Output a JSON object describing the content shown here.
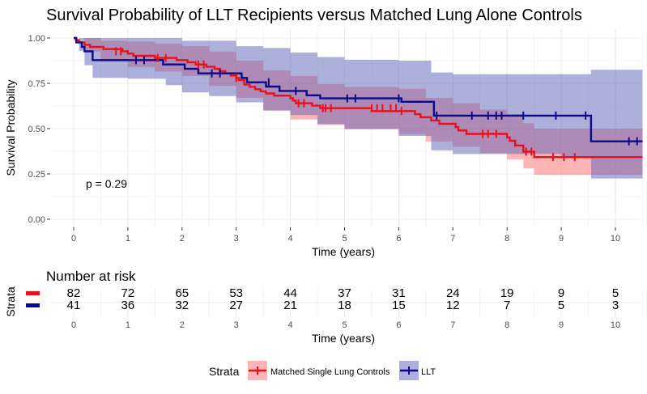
{
  "colors": {
    "controls": "#e8101b",
    "llt": "#0a0a8a",
    "controls_band": "#ff6b6b",
    "llt_band": "#5c62b8",
    "grid": "#ebebeb",
    "text": "#000000",
    "tick_text": "#4d4d4d"
  },
  "chart_data": {
    "type": "line",
    "title": "Survival Probability of LLT Recipients versus Matched Lung Alone Controls",
    "xlabel": "Time (years)",
    "ylabel": "Survival Probability",
    "xlim": [
      0,
      10.5
    ],
    "ylim": [
      0,
      1
    ],
    "x_ticks": [
      "0",
      "1",
      "2",
      "3",
      "4",
      "5",
      "6",
      "7",
      "8",
      "9",
      "10"
    ],
    "y_ticks": [
      "0.00",
      "0.25",
      "0.50",
      "0.75",
      "1.00"
    ],
    "y_tick_values": [
      0,
      0.25,
      0.5,
      0.75,
      1.0
    ],
    "annotation": "p = 0.29",
    "legend_title": "Strata",
    "legend_position": "bottom",
    "series": [
      {
        "name": "Matched Single Lung Controls",
        "key": "controls",
        "steps": [
          [
            0,
            1.0
          ],
          [
            0.04,
            0.988
          ],
          [
            0.1,
            0.976
          ],
          [
            0.2,
            0.963
          ],
          [
            0.3,
            0.951
          ],
          [
            0.55,
            0.939
          ],
          [
            0.9,
            0.927
          ],
          [
            1.0,
            0.914
          ],
          [
            1.1,
            0.902
          ],
          [
            1.5,
            0.89
          ],
          [
            1.9,
            0.878
          ],
          [
            2.1,
            0.866
          ],
          [
            2.25,
            0.854
          ],
          [
            2.45,
            0.842
          ],
          [
            2.6,
            0.83
          ],
          [
            2.7,
            0.817
          ],
          [
            2.8,
            0.805
          ],
          [
            2.9,
            0.793
          ],
          [
            3.0,
            0.78
          ],
          [
            3.05,
            0.768
          ],
          [
            3.15,
            0.743
          ],
          [
            3.25,
            0.731
          ],
          [
            3.35,
            0.718
          ],
          [
            3.45,
            0.706
          ],
          [
            3.55,
            0.694
          ],
          [
            3.7,
            0.682
          ],
          [
            4.0,
            0.668
          ],
          [
            4.05,
            0.655
          ],
          [
            4.1,
            0.64
          ],
          [
            4.4,
            0.627
          ],
          [
            4.55,
            0.613
          ],
          [
            5.5,
            0.597
          ],
          [
            6.3,
            0.58
          ],
          [
            6.4,
            0.563
          ],
          [
            6.6,
            0.545
          ],
          [
            6.75,
            0.527
          ],
          [
            7.05,
            0.509
          ],
          [
            7.1,
            0.49
          ],
          [
            7.25,
            0.471
          ],
          [
            8.0,
            0.452
          ],
          [
            8.05,
            0.433
          ],
          [
            8.15,
            0.407
          ],
          [
            8.3,
            0.373
          ],
          [
            8.5,
            0.343
          ],
          [
            10.5,
            0.343
          ]
        ],
        "censors": [
          [
            0.78,
            0.927
          ],
          [
            0.87,
            0.927
          ],
          [
            1.55,
            0.89
          ],
          [
            1.7,
            0.89
          ],
          [
            2.3,
            0.854
          ],
          [
            2.4,
            0.854
          ],
          [
            3.0,
            0.78
          ],
          [
            4.15,
            0.64
          ],
          [
            4.25,
            0.64
          ],
          [
            4.6,
            0.613
          ],
          [
            4.65,
            0.613
          ],
          [
            4.75,
            0.613
          ],
          [
            5.5,
            0.613
          ],
          [
            5.6,
            0.613
          ],
          [
            5.7,
            0.613
          ],
          [
            5.85,
            0.613
          ],
          [
            5.95,
            0.613
          ],
          [
            6.05,
            0.597
          ],
          [
            7.55,
            0.471
          ],
          [
            7.65,
            0.471
          ],
          [
            7.8,
            0.471
          ],
          [
            8.35,
            0.373
          ],
          [
            8.45,
            0.373
          ],
          [
            8.85,
            0.343
          ],
          [
            9.05,
            0.343
          ],
          [
            9.25,
            0.343
          ]
        ],
        "band_upper": [
          [
            0,
            1.0
          ],
          [
            0.2,
            1.0
          ],
          [
            0.5,
            0.985
          ],
          [
            1.0,
            0.98
          ],
          [
            1.5,
            0.97
          ],
          [
            2.0,
            0.955
          ],
          [
            2.5,
            0.925
          ],
          [
            3.0,
            0.875
          ],
          [
            3.5,
            0.82
          ],
          [
            4.0,
            0.79
          ],
          [
            4.5,
            0.745
          ],
          [
            5.0,
            0.73
          ],
          [
            6.0,
            0.72
          ],
          [
            6.5,
            0.67
          ],
          [
            7.0,
            0.64
          ],
          [
            7.5,
            0.605
          ],
          [
            8.0,
            0.58
          ],
          [
            8.3,
            0.53
          ],
          [
            8.5,
            0.5
          ],
          [
            9.0,
            0.5
          ],
          [
            10.5,
            0.5
          ]
        ],
        "band_lower": [
          [
            0,
            1.0
          ],
          [
            0.2,
            0.925
          ],
          [
            0.5,
            0.87
          ],
          [
            1.0,
            0.84
          ],
          [
            1.5,
            0.815
          ],
          [
            2.0,
            0.79
          ],
          [
            2.5,
            0.735
          ],
          [
            3.0,
            0.67
          ],
          [
            3.5,
            0.6
          ],
          [
            4.0,
            0.55
          ],
          [
            4.5,
            0.52
          ],
          [
            5.0,
            0.495
          ],
          [
            6.0,
            0.47
          ],
          [
            6.5,
            0.43
          ],
          [
            7.0,
            0.4
          ],
          [
            7.5,
            0.365
          ],
          [
            8.0,
            0.33
          ],
          [
            8.3,
            0.28
          ],
          [
            8.5,
            0.245
          ],
          [
            9.0,
            0.245
          ],
          [
            10.5,
            0.245
          ]
        ]
      },
      {
        "name": "LLT",
        "key": "llt",
        "steps": [
          [
            0,
            1.0
          ],
          [
            0.05,
            0.976
          ],
          [
            0.15,
            0.951
          ],
          [
            0.2,
            0.927
          ],
          [
            0.35,
            0.878
          ],
          [
            1.65,
            0.854
          ],
          [
            2.05,
            0.83
          ],
          [
            2.3,
            0.805
          ],
          [
            3.1,
            0.78
          ],
          [
            3.2,
            0.756
          ],
          [
            3.55,
            0.732
          ],
          [
            3.8,
            0.708
          ],
          [
            4.3,
            0.684
          ],
          [
            4.55,
            0.667
          ],
          [
            6.05,
            0.648
          ],
          [
            6.65,
            0.572
          ],
          [
            9.55,
            0.43
          ],
          [
            10.5,
            0.43
          ]
        ],
        "censors": [
          [
            1.15,
            0.878
          ],
          [
            1.3,
            0.878
          ],
          [
            2.55,
            0.805
          ],
          [
            2.7,
            0.805
          ],
          [
            3.6,
            0.756
          ],
          [
            4.1,
            0.708
          ],
          [
            5.05,
            0.667
          ],
          [
            5.2,
            0.667
          ],
          [
            6.0,
            0.667
          ],
          [
            6.7,
            0.572
          ],
          [
            7.35,
            0.572
          ],
          [
            7.65,
            0.572
          ],
          [
            7.8,
            0.572
          ],
          [
            7.9,
            0.572
          ],
          [
            8.3,
            0.572
          ],
          [
            8.9,
            0.572
          ],
          [
            9.45,
            0.572
          ],
          [
            10.25,
            0.43
          ],
          [
            10.4,
            0.43
          ]
        ],
        "band_upper": [
          [
            0,
            1.0
          ],
          [
            0.5,
            1.0
          ],
          [
            1.0,
            1.0
          ],
          [
            2.0,
            0.985
          ],
          [
            3.0,
            0.955
          ],
          [
            3.5,
            0.945
          ],
          [
            4.0,
            0.92
          ],
          [
            4.5,
            0.895
          ],
          [
            5.0,
            0.88
          ],
          [
            6.0,
            0.875
          ],
          [
            6.6,
            0.81
          ],
          [
            7.0,
            0.8
          ],
          [
            9.0,
            0.8
          ],
          [
            9.55,
            0.825
          ],
          [
            10.5,
            0.825
          ]
        ],
        "band_lower": [
          [
            0,
            1.0
          ],
          [
            0.1,
            0.93
          ],
          [
            0.2,
            0.85
          ],
          [
            0.35,
            0.78
          ],
          [
            1.0,
            0.775
          ],
          [
            1.7,
            0.74
          ],
          [
            2.0,
            0.7
          ],
          [
            2.5,
            0.68
          ],
          [
            3.0,
            0.645
          ],
          [
            3.5,
            0.6
          ],
          [
            4.0,
            0.575
          ],
          [
            4.5,
            0.525
          ],
          [
            5.0,
            0.5
          ],
          [
            6.0,
            0.46
          ],
          [
            6.6,
            0.38
          ],
          [
            7.0,
            0.36
          ],
          [
            9.0,
            0.34
          ],
          [
            9.55,
            0.225
          ],
          [
            10.5,
            0.225
          ]
        ]
      }
    ],
    "risk_table": {
      "title": "Number at risk",
      "strata_label": "Strata",
      "xlabel": "Time (years)",
      "times": [
        "0",
        "1",
        "2",
        "3",
        "4",
        "5",
        "6",
        "7",
        "8",
        "9",
        "10"
      ],
      "rows": [
        {
          "key": "controls",
          "counts": [
            "82",
            "72",
            "65",
            "53",
            "44",
            "37",
            "31",
            "24",
            "19",
            "9",
            "5"
          ]
        },
        {
          "key": "llt",
          "counts": [
            "41",
            "36",
            "32",
            "27",
            "21",
            "18",
            "15",
            "12",
            "7",
            "5",
            "3"
          ]
        }
      ]
    }
  }
}
